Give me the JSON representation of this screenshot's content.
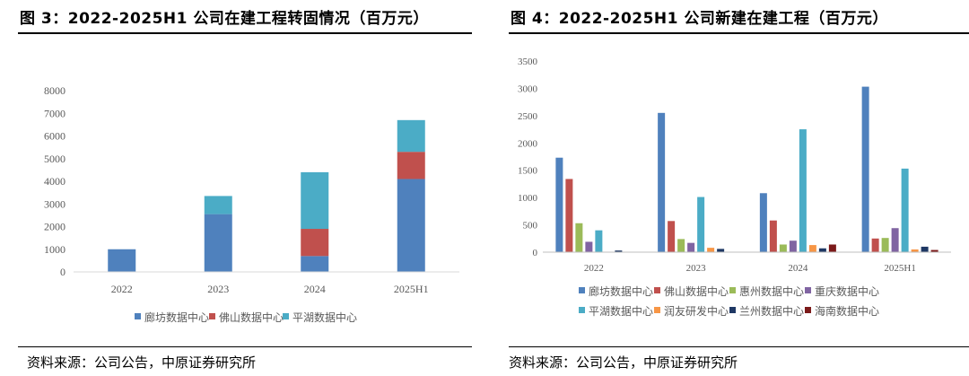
{
  "left": {
    "title": "图 3：2022-2025H1  公司在建工程转固情况（百万元）",
    "source": "资料来源：公司公告，中原证券研究所"
  },
  "right": {
    "title": "图 4：2022-2025H1 公司新建在建工程（百万元）",
    "source": "资料来源：公司公告，中原证券研究所"
  },
  "chart_data": [
    {
      "type": "bar",
      "stacked": true,
      "title": "2022-2025H1 公司在建工程转固情况（百万元）",
      "categories": [
        "2022",
        "2023",
        "2024",
        "2025H1"
      ],
      "ylim": [
        0,
        8000
      ],
      "yticks": [
        0,
        1000,
        2000,
        3000,
        4000,
        5000,
        6000,
        7000,
        8000
      ],
      "legend_position": "bottom",
      "series": [
        {
          "name": "廊坊数据中心",
          "color": "#4f81bd",
          "values": [
            1000,
            2550,
            700,
            4100
          ]
        },
        {
          "name": "佛山数据中心",
          "color": "#c0504d",
          "values": [
            0,
            0,
            1200,
            1200
          ]
        },
        {
          "name": "平湖数据中心",
          "color": "#4bacc6",
          "values": [
            0,
            800,
            2500,
            1400
          ]
        }
      ]
    },
    {
      "type": "bar",
      "stacked": false,
      "title": "2022-2025H1 公司新建在建工程（百万元）",
      "categories": [
        "2022",
        "2023",
        "2024",
        "2025H1"
      ],
      "ylim": [
        0,
        3500
      ],
      "yticks": [
        0,
        500,
        1000,
        1500,
        2000,
        2500,
        3000,
        3500
      ],
      "legend_position": "bottom",
      "series": [
        {
          "name": "廊坊数据中心",
          "color": "#4f81bd",
          "values": [
            1730,
            2550,
            1080,
            3030
          ]
        },
        {
          "name": "佛山数据中心",
          "color": "#c0504d",
          "values": [
            1340,
            570,
            580,
            250
          ]
        },
        {
          "name": "惠州数据中心",
          "color": "#9bbb59",
          "values": [
            530,
            240,
            140,
            260
          ]
        },
        {
          "name": "重庆数据中心",
          "color": "#8064a2",
          "values": [
            190,
            170,
            210,
            440
          ]
        },
        {
          "name": "平湖数据中心",
          "color": "#4bacc6",
          "values": [
            400,
            1010,
            2250,
            1530
          ]
        },
        {
          "name": "润友研发中心",
          "color": "#f79646",
          "values": [
            0,
            80,
            130,
            50
          ]
        },
        {
          "name": "兰州数据中心",
          "color": "#1f3864",
          "values": [
            30,
            60,
            70,
            100
          ]
        },
        {
          "name": "海南数据中心",
          "color": "#7b1a1a",
          "values": [
            0,
            0,
            140,
            40
          ]
        }
      ]
    }
  ]
}
